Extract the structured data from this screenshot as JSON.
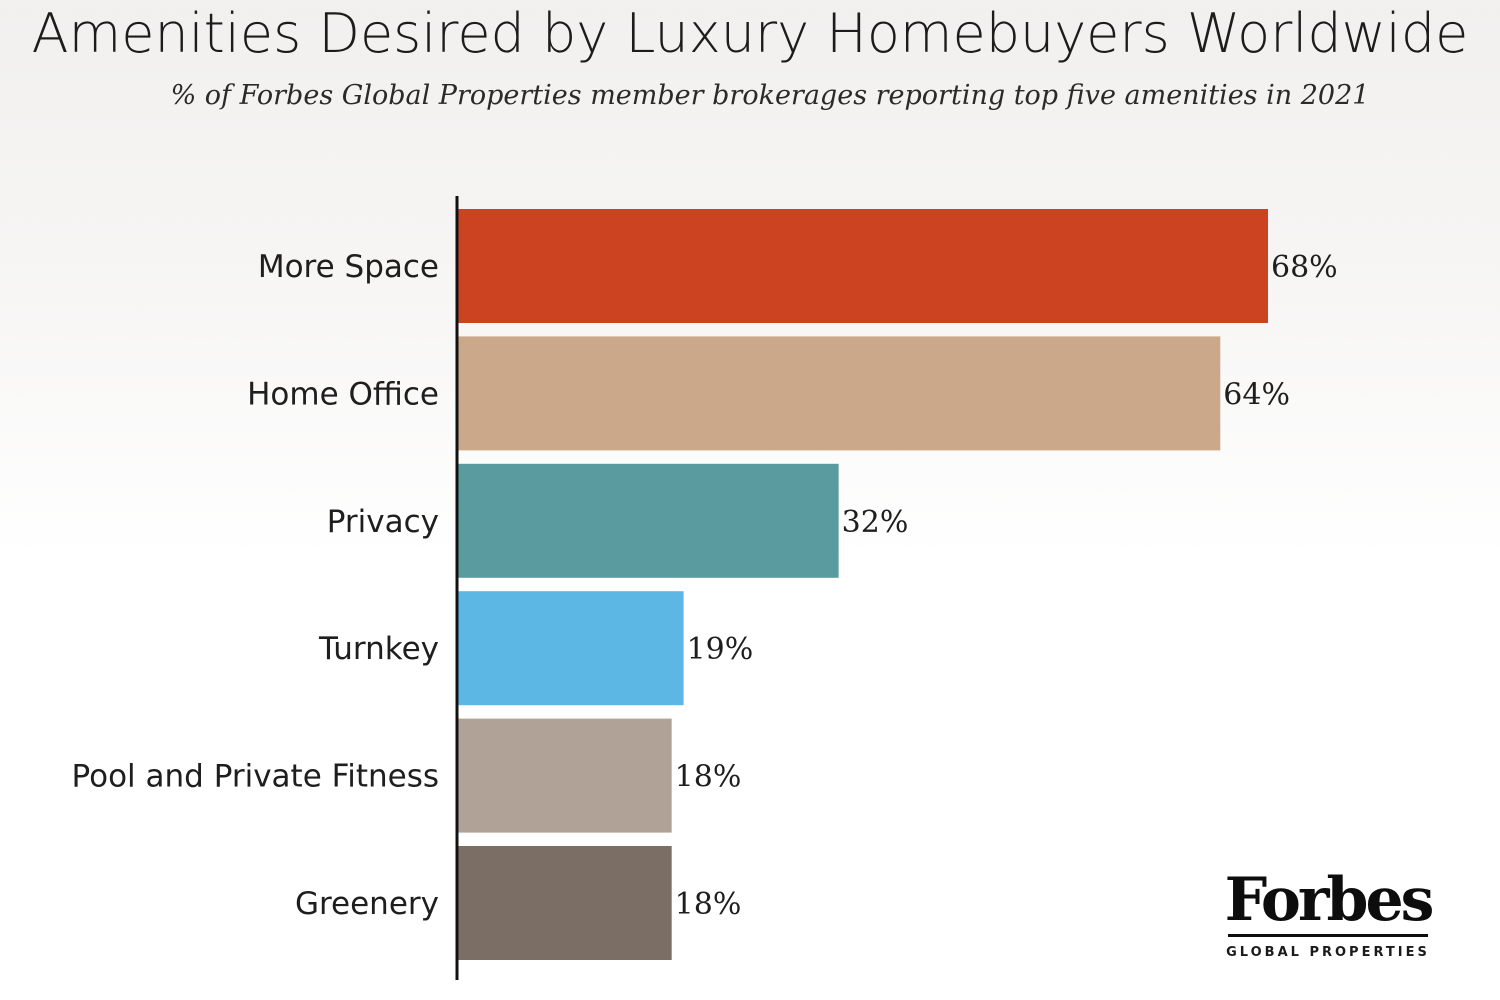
{
  "chart_data": {
    "type": "bar",
    "orientation": "horizontal",
    "title": "Amenities Desired by Luxury Homebuyers Worldwide",
    "subtitle": "% of Forbes Global Properties member brokerages reporting top five amenities in 2021",
    "categories": [
      "More Space",
      "Home Office",
      "Privacy",
      "Turnkey",
      "Pool and Private Fitness",
      "Greenery"
    ],
    "values": [
      68,
      64,
      32,
      19,
      18,
      18
    ],
    "value_labels": [
      "68%",
      "64%",
      "32%",
      "19%",
      "18%",
      "18%"
    ],
    "colors": [
      "#cc4322",
      "#cca88a",
      "#5a9ba0",
      "#5db7e4",
      "#b1a298",
      "#7b6e64"
    ],
    "xlim": [
      0,
      68
    ],
    "grid": false,
    "legend": "none"
  },
  "branding": {
    "wordmark": "Forbes",
    "tagline": "GLOBAL PROPERTIES"
  }
}
